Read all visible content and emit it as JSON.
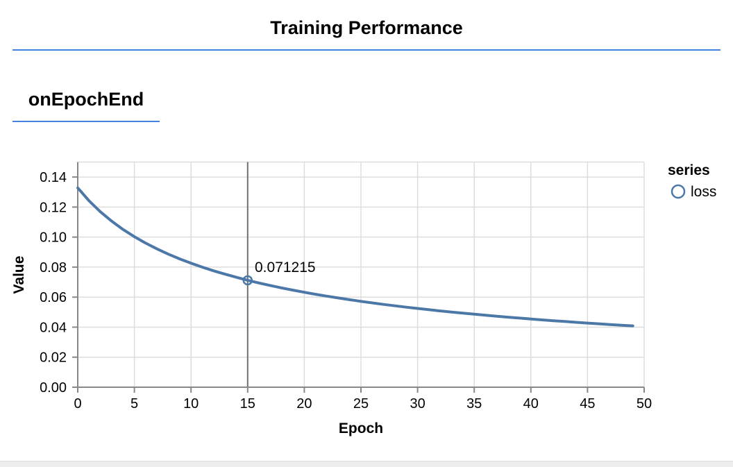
{
  "page": {
    "title": "Training Performance",
    "section_label": "onEpochEnd",
    "accent_color": "#4281dd"
  },
  "chart_data": {
    "type": "line",
    "title": "Training Performance",
    "xlabel": "Epoch",
    "ylabel": "Value",
    "xlim": [
      0,
      50
    ],
    "ylim": [
      0,
      0.15
    ],
    "grid": true,
    "x_ticks": [
      0,
      5,
      10,
      15,
      20,
      25,
      30,
      35,
      40,
      45,
      50
    ],
    "x_tick_labels": [
      "0",
      "5",
      "10",
      "15",
      "20",
      "25",
      "30",
      "35",
      "40",
      "45",
      "50"
    ],
    "y_ticks": [
      0,
      0.02,
      0.04,
      0.06,
      0.08,
      0.1,
      0.12,
      0.14
    ],
    "y_tick_labels": [
      "0.00",
      "0.02",
      "0.04",
      "0.06",
      "0.08",
      "0.10",
      "0.12",
      "0.14"
    ],
    "legend": {
      "position": "right",
      "title": "series",
      "entries": [
        {
          "label": "loss",
          "symbol": "open-circle",
          "color": "#4c78a8"
        }
      ]
    },
    "series": [
      {
        "name": "loss",
        "color": "#4c78a8",
        "x": [
          0,
          1,
          2,
          3,
          4,
          5,
          6,
          7,
          8,
          9,
          10,
          11,
          12,
          13,
          14,
          15,
          16,
          17,
          18,
          19,
          20,
          21,
          22,
          23,
          24,
          25,
          26,
          27,
          28,
          29,
          30,
          31,
          32,
          33,
          34,
          35,
          36,
          37,
          38,
          39,
          40,
          41,
          42,
          43,
          44,
          45,
          46,
          47,
          48,
          49
        ],
        "values": [
          0.13281,
          0.124172,
          0.116853,
          0.110566,
          0.105082,
          0.100248,
          0.095954,
          0.092104,
          0.088632,
          0.085483,
          0.082607,
          0.079969,
          0.077536,
          0.07529,
          0.073201,
          0.071215,
          0.069446,
          0.067749,
          0.066151,
          0.064648,
          0.06323,
          0.061894,
          0.060625,
          0.059423,
          0.05828,
          0.057193,
          0.056158,
          0.055168,
          0.054224,
          0.053319,
          0.052452,
          0.051621,
          0.050823,
          0.050057,
          0.04932,
          0.048611,
          0.047929,
          0.047268,
          0.046623,
          0.046018,
          0.045426,
          0.044851,
          0.044294,
          0.043757,
          0.043236,
          0.042728,
          0.042237,
          0.041762,
          0.041298,
          0.04085
        ]
      }
    ],
    "annotation": {
      "epoch": 15,
      "value": 0.071215,
      "label": "0.071215"
    },
    "colors": {
      "grid": "#dddddd",
      "axis": "#888888",
      "rule": "#6f6f6f",
      "text": "#000000"
    }
  }
}
